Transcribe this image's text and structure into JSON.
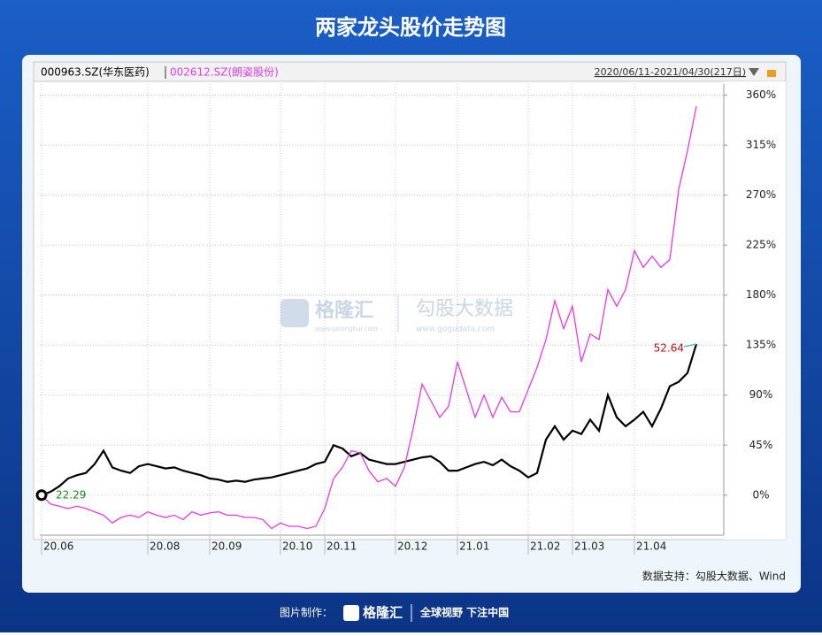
{
  "chart_data": {
    "type": "line",
    "title": "两家龙头股价走势图",
    "date_range": "2020/06/11-2021/04/30(217日)",
    "categories": [
      "20.06",
      null,
      null,
      null,
      null,
      null,
      null,
      null,
      null,
      null,
      null,
      null,
      "20.08",
      null,
      null,
      null,
      null,
      null,
      null,
      "20.09",
      null,
      null,
      null,
      null,
      null,
      null,
      null,
      "20.10",
      null,
      null,
      null,
      null,
      "20.11",
      null,
      null,
      null,
      null,
      null,
      null,
      null,
      "20.12",
      null,
      null,
      null,
      null,
      null,
      null,
      "21.01",
      null,
      null,
      null,
      null,
      null,
      null,
      null,
      "21.02",
      null,
      null,
      null,
      null,
      "21.03",
      null,
      null,
      null,
      null,
      null,
      null,
      "21.04",
      null,
      null,
      null,
      null,
      null,
      null,
      null
    ],
    "series": [
      {
        "name": "000963.SZ(华东医药)",
        "color": "#000000",
        "values": [
          0,
          3,
          8,
          15,
          18,
          20,
          28,
          40,
          25,
          22,
          20,
          26,
          28,
          26,
          24,
          25,
          22,
          20,
          18,
          15,
          14,
          12,
          13,
          12,
          14,
          15,
          16,
          18,
          20,
          22,
          24,
          28,
          30,
          45,
          42,
          35,
          38,
          32,
          30,
          28,
          28,
          30,
          32,
          34,
          35,
          30,
          22,
          22,
          25,
          28,
          30,
          27,
          32,
          26,
          22,
          16,
          20,
          50,
          62,
          50,
          58,
          55,
          68,
          58,
          90,
          70,
          62,
          68,
          75,
          62,
          78,
          98,
          102,
          110,
          136
        ]
      },
      {
        "name": "002612.SZ(朗姿股份)",
        "color": "#e63be6",
        "values": [
          0,
          -8,
          -10,
          -12,
          -10,
          -12,
          -15,
          -18,
          -25,
          -20,
          -18,
          -20,
          -15,
          -18,
          -20,
          -18,
          -22,
          -15,
          -18,
          -16,
          -15,
          -18,
          -18,
          -20,
          -20,
          -22,
          -30,
          -25,
          -28,
          -28,
          -30,
          -28,
          -12,
          15,
          25,
          40,
          38,
          22,
          12,
          15,
          8,
          25,
          60,
          100,
          85,
          70,
          80,
          120,
          95,
          70,
          90,
          70,
          88,
          75,
          75,
          95,
          115,
          140,
          175,
          150,
          170,
          120,
          145,
          140,
          185,
          170,
          185,
          220,
          205,
          215,
          205,
          212,
          275,
          310,
          350
        ]
      }
    ],
    "annotations": [
      "22.29",
      "52.64"
    ],
    "ylim": [
      -36,
      370
    ],
    "yticks": [
      {
        "value": 0,
        "label": "0%"
      },
      {
        "value": 45,
        "label": "45%"
      },
      {
        "value": 90,
        "label": "90%"
      },
      {
        "value": 135,
        "label": "135%"
      },
      {
        "value": 180,
        "label": "180%"
      },
      {
        "value": 225,
        "label": "225%"
      },
      {
        "value": 270,
        "label": "270%"
      },
      {
        "value": 315,
        "label": "315%"
      },
      {
        "value": 360,
        "label": "360%"
      }
    ],
    "grid": true,
    "watermark": {
      "brand": "格隆汇",
      "brand_url": "www.gelonghui.com",
      "product": "勾股大数据",
      "product_url": "www.gogudata.com"
    },
    "source": "数据支持：勾股大数据、Wind",
    "footer": {
      "label": "图片制作：",
      "brand": "格隆汇",
      "slogan": "全球视野 下注中国"
    }
  }
}
